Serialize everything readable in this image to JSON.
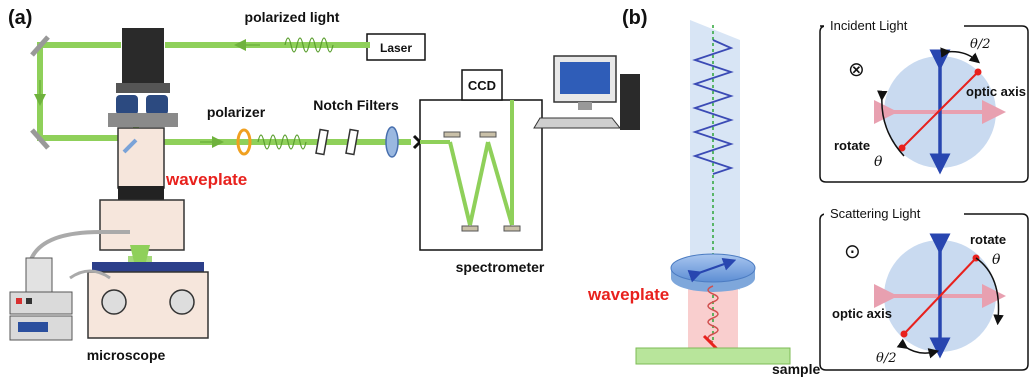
{
  "panel_a": {
    "label": "(a)",
    "laser": "Laser",
    "polarized_light": "polarized light",
    "polarizer": "polarizer",
    "notch_filters": "Notch Filters",
    "ccd": "CCD",
    "waveplate": "waveplate",
    "spectrometer": "spectrometer",
    "microscope": "microscope"
  },
  "panel_b": {
    "label": "(b)",
    "waveplate": "waveplate",
    "sample": "sample",
    "incident": {
      "title": "Incident Light",
      "half_angle": "θ/2",
      "optic_axis": "optic axis",
      "rotate": "rotate",
      "theta": "θ",
      "direction_symbol": "⊗"
    },
    "scattering": {
      "title": "Scattering Light",
      "half_angle": "θ/2",
      "optic_axis": "optic axis",
      "rotate": "rotate",
      "theta": "θ",
      "direction_symbol": "⊙"
    }
  },
  "colors": {
    "beam_green": "#8fd05a",
    "scatter_red": "#f4a3a3",
    "blue_wave": "#3b4bb5",
    "accent_red": "#e8211d",
    "disc_blue": "#bcd0ec",
    "pink_axis": "#e8a0b0"
  }
}
